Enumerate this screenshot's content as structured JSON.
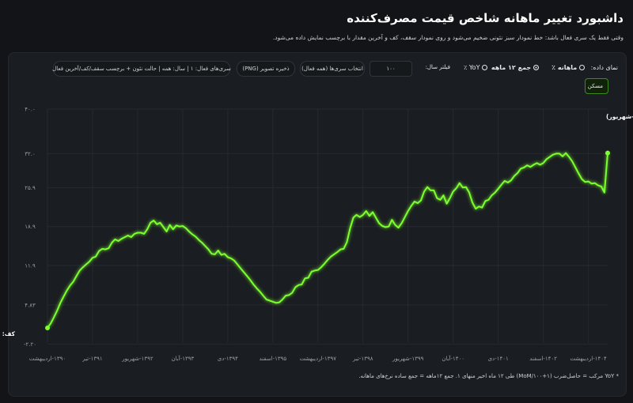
{
  "header": {
    "title": "داشبورد تغییر ماهانه شاخص قیمت مصرف‌کننده",
    "subtitle": "وقتی فقط یک سری فعال باشد: خط نمودار سبز نئونی ضخیم می‌شود و روی نمودار سقف، کف و آخرین مقدار با برچسب نمایش داده می‌شود."
  },
  "controls": {
    "display_label": "نمای داده:",
    "mode_monthly": "ماهانه ٪",
    "mode_sum12": "جمع ۱۲ ماهه",
    "mode_yoy": "YoY ٪",
    "year_filter_label": "فیلتر سال:",
    "year_input": "۱۰۰",
    "series_select": "انتخاب سری‌ها (همه فعال)",
    "save_image": "ذخیره تصویر (PNG)",
    "status": "سری‌های فعال: ۱ | سال: همه | حالت نئون + برچسب سقف/کف/آخرین فعال"
  },
  "legend": {
    "label": "مسکن"
  },
  "annotations": {
    "max": "سقف: ۳۲.۱۰٪ (۱۴۰۴-شهریور)",
    "min": "کف: ۰.۷۱٪ (۹۰)"
  },
  "footer": "* YoY مرکب = حاصل‌ضرب (۱+MoM/۱۰۰) طی ۱۲ ماه اخیر منهای ۱. جمع ۱۲ماهه = جمع ساده نرخ‌های ماهانه.",
  "colors": {
    "accent": "#7cff2e",
    "background": "#121417",
    "card": "#1a1d21"
  },
  "chart_data": {
    "type": "line",
    "title": "",
    "xlabel": "",
    "ylabel": "",
    "ylim": [
      -2,
      40
    ],
    "y_ticks": [
      "۴۰.۰",
      "۳۲.۰",
      "۲۵.۹",
      "۱۸.۹",
      "۱۱.۹",
      "۴.۸۳",
      "-۲.۲۰"
    ],
    "y_tick_values": [
      40,
      32,
      25.9,
      18.9,
      11.9,
      4.83,
      -2.2
    ],
    "x_ticks": [
      "۱۳۹۰-اردیبهشت",
      "۱۳۹۱-تیر",
      "۱۳۹۲-شهریور",
      "۱۳۹۳-آبان",
      "۱۳۹۴-دی",
      "۱۳۹۵-اسفند",
      "۱۳۹۷-اردیبهشت",
      "۱۳۹۸-تیر",
      "۱۳۹۹-شهریور",
      "۱۴۰۰-آبان",
      "۱۴۰۱-دی",
      "۱۴۰۲-اسفند",
      "۱۴۰۴-اردیبهشت"
    ],
    "x_tick_index": [
      0,
      14,
      28,
      42,
      56,
      70,
      84,
      98,
      112,
      126,
      140,
      154,
      168
    ],
    "series": [
      {
        "name": "مسکن",
        "values": [
          0.7,
          1.5,
          2.6,
          3.8,
          5.2,
          6.3,
          7.4,
          8.3,
          9.0,
          10.0,
          11.0,
          11.6,
          12.1,
          12.6,
          13.3,
          13.5,
          14.5,
          14.9,
          14.8,
          15.0,
          16.0,
          16.6,
          16.3,
          16.7,
          17.0,
          17.3,
          17.0,
          17.6,
          17.8,
          17.8,
          17.6,
          18.4,
          19.6,
          20.0,
          19.3,
          19.6,
          18.8,
          18.0,
          19.2,
          18.4,
          19.1,
          18.9,
          19.0,
          18.6,
          18.0,
          17.5,
          17.1,
          16.5,
          16.0,
          15.4,
          14.8,
          14.0,
          13.9,
          14.6,
          13.8,
          14.0,
          13.4,
          13.2,
          12.8,
          12.1,
          11.4,
          10.7,
          10.0,
          9.3,
          8.5,
          7.8,
          7.2,
          6.5,
          5.8,
          5.6,
          5.4,
          5.2,
          5.3,
          5.8,
          6.5,
          6.6,
          7.0,
          8.0,
          8.4,
          8.5,
          9.6,
          9.7,
          10.8,
          11.0,
          11.1,
          11.6,
          12.2,
          12.9,
          13.5,
          13.9,
          14.3,
          14.8,
          14.9,
          16.1,
          18.6,
          20.5,
          21.0,
          20.6,
          21.0,
          21.7,
          20.8,
          21.5,
          20.5,
          19.5,
          19.0,
          18.8,
          18.9,
          20.1,
          19.2,
          18.7,
          19.5,
          20.6,
          21.7,
          22.6,
          23.4,
          23.1,
          23.6,
          25.2,
          26.0,
          25.4,
          25.4,
          24.0,
          23.7,
          24.5,
          23.0,
          24.0,
          25.2,
          25.8,
          26.7,
          25.9,
          26.0,
          25.0,
          23.2,
          22.1,
          22.5,
          22.3,
          23.5,
          23.7,
          24.5,
          25.0,
          25.7,
          26.4,
          27.1,
          26.8,
          27.2,
          28.0,
          28.5,
          29.3,
          29.5,
          29.9,
          29.6,
          30.0,
          30.3,
          30.0,
          30.3,
          31.0,
          31.4,
          31.8,
          32.0,
          32.0,
          31.5,
          32.1,
          31.4,
          30.6,
          29.5,
          28.4,
          27.4,
          26.9,
          27.0,
          26.6,
          26.7,
          26.3,
          26.1,
          25.0,
          32.1
        ]
      }
    ],
    "max_point": {
      "label": "سقف",
      "value": 32.1,
      "period": "۱۴۰۴-شهریور"
    },
    "min_point": {
      "label": "کف",
      "value": 0.71,
      "period": "۹۰"
    },
    "grid": true,
    "legend_position": "top-right"
  }
}
